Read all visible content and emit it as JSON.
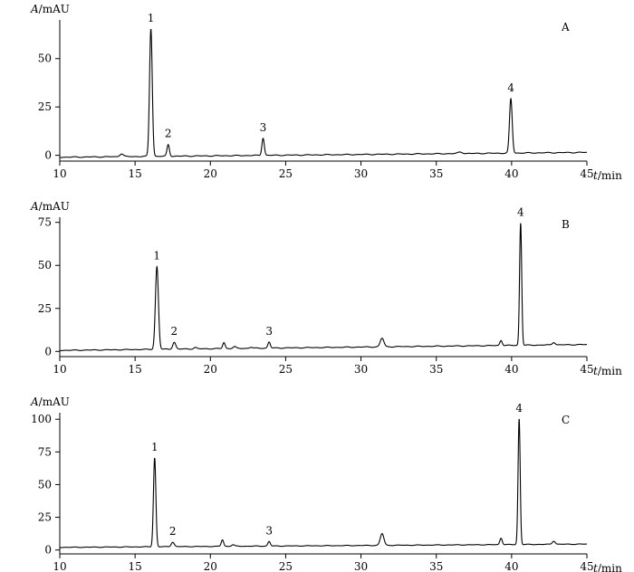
{
  "chart_data": [
    {
      "type": "line",
      "panel_label": "A",
      "ylabel": "A/mAU",
      "xlabel": "t/min",
      "xlim": [
        10,
        45
      ],
      "ylim": [
        -3,
        70
      ],
      "xticks": [
        10,
        15,
        20,
        25,
        30,
        35,
        40,
        45
      ],
      "yticks": [
        0,
        25,
        50
      ],
      "baseline": {
        "start": -1.0,
        "end": 1.5
      },
      "peaks": [
        {
          "t": 14.1,
          "h": 1.5,
          "w": 0.12
        },
        {
          "t": 16.05,
          "h": 66,
          "w": 0.09,
          "label": "1"
        },
        {
          "t": 17.2,
          "h": 6,
          "w": 0.08,
          "label": "2"
        },
        {
          "t": 23.5,
          "h": 9,
          "w": 0.08,
          "label": "3"
        },
        {
          "t": 36.6,
          "h": 0.8,
          "w": 0.15
        },
        {
          "t": 39.95,
          "h": 28,
          "w": 0.09,
          "label": "4"
        }
      ],
      "peak_labels": [
        "1",
        "2",
        "3",
        "4"
      ],
      "grid": false
    },
    {
      "type": "line",
      "panel_label": "B",
      "ylabel": "A/mAU",
      "xlabel": "t/min",
      "xlim": [
        10,
        45
      ],
      "ylim": [
        -3,
        78
      ],
      "xticks": [
        10,
        15,
        20,
        25,
        30,
        35,
        40,
        45
      ],
      "yticks": [
        0,
        25,
        50,
        75
      ],
      "baseline": {
        "start": 0.6,
        "end": 4.0
      },
      "peaks": [
        {
          "t": 16.45,
          "h": 48,
          "w": 0.1,
          "label": "1"
        },
        {
          "t": 17.6,
          "h": 4,
          "w": 0.1,
          "label": "2"
        },
        {
          "t": 19.0,
          "h": 0.8,
          "w": 0.1
        },
        {
          "t": 20.9,
          "h": 3.5,
          "w": 0.08
        },
        {
          "t": 21.6,
          "h": 1,
          "w": 0.1
        },
        {
          "t": 22.7,
          "h": 0.6,
          "w": 0.1
        },
        {
          "t": 23.9,
          "h": 3.5,
          "w": 0.08,
          "label": "3"
        },
        {
          "t": 31.4,
          "h": 5,
          "w": 0.12
        },
        {
          "t": 39.3,
          "h": 3,
          "w": 0.08
        },
        {
          "t": 40.6,
          "h": 71,
          "w": 0.07,
          "label": "4"
        },
        {
          "t": 42.8,
          "h": 1.5,
          "w": 0.1
        }
      ],
      "peak_labels": [
        "1",
        "2",
        "3",
        "4"
      ],
      "grid": false
    },
    {
      "type": "line",
      "panel_label": "C",
      "ylabel": "A/mAU",
      "xlabel": "t/min",
      "xlim": [
        10,
        45
      ],
      "ylim": [
        -3,
        105
      ],
      "xticks": [
        10,
        15,
        20,
        25,
        30,
        35,
        40,
        45
      ],
      "yticks": [
        0,
        25,
        50,
        75,
        100
      ],
      "baseline": {
        "start": 2.0,
        "end": 4.5
      },
      "peaks": [
        {
          "t": 16.3,
          "h": 68,
          "w": 0.08,
          "label": "1"
        },
        {
          "t": 17.5,
          "h": 3.5,
          "w": 0.1,
          "label": "2"
        },
        {
          "t": 20.8,
          "h": 5,
          "w": 0.08
        },
        {
          "t": 21.5,
          "h": 1.2,
          "w": 0.1
        },
        {
          "t": 23.9,
          "h": 3.5,
          "w": 0.08,
          "label": "3"
        },
        {
          "t": 31.4,
          "h": 9,
          "w": 0.12
        },
        {
          "t": 39.3,
          "h": 5,
          "w": 0.08
        },
        {
          "t": 40.5,
          "h": 96,
          "w": 0.07,
          "label": "4"
        },
        {
          "t": 42.8,
          "h": 2.5,
          "w": 0.1
        }
      ],
      "peak_labels": [
        "1",
        "2",
        "3",
        "4"
      ],
      "grid": false
    }
  ]
}
